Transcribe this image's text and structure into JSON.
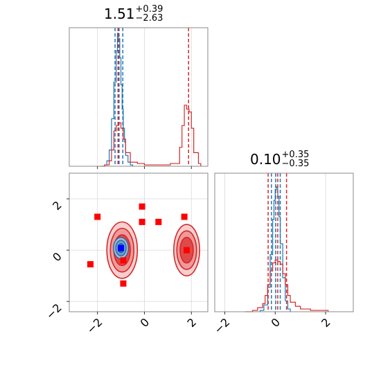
{
  "chart_data": {
    "type": "corner",
    "parameters": [
      {
        "title_value": "1.51",
        "title_plus": "+0.39",
        "title_minus": "−2.63",
        "range": [
          -3.2,
          2.7
        ],
        "ticks": [
          -2,
          0,
          2
        ],
        "tick_labels": [
          "−2",
          "0",
          "2"
        ]
      },
      {
        "title_value": "0.10",
        "title_plus": "+0.35",
        "title_minus": "−0.35",
        "range": [
          -2.4,
          3.1
        ],
        "ticks": [
          -2,
          0,
          2
        ],
        "tick_labels": [
          "−2",
          "0",
          "2"
        ]
      }
    ],
    "y_axis_2d": {
      "range": [
        -2.4,
        3.0
      ],
      "ticks": [
        -2,
        0,
        2
      ],
      "tick_labels": [
        "−2",
        "0",
        "2"
      ]
    },
    "series": [
      {
        "color": "#1f77b4",
        "quantiles_param1": [
          -0.92,
          -1.08,
          -1.25
        ],
        "quantiles_param2": [
          -0.15,
          0.02,
          0.2
        ],
        "hist1": {
          "x": [
            -1.7,
            -1.6,
            -1.5,
            -1.4,
            -1.3,
            -1.2,
            -1.15,
            -1.1,
            -1.05,
            -1.0,
            -0.95,
            -0.9,
            -0.85,
            -0.8,
            -0.7,
            -0.6
          ],
          "y": [
            0.01,
            0.04,
            0.12,
            0.35,
            0.62,
            0.85,
            0.98,
            0.94,
            0.8,
            0.6,
            0.42,
            0.28,
            0.18,
            0.08,
            0.03,
            0.01
          ]
        },
        "hist2": {
          "x": [
            -0.6,
            -0.45,
            -0.3,
            -0.2,
            -0.1,
            -0.05,
            0.0,
            0.05,
            0.1,
            0.15,
            0.2,
            0.3,
            0.4,
            0.5
          ],
          "y": [
            0.01,
            0.05,
            0.18,
            0.42,
            0.68,
            0.82,
            0.9,
            0.92,
            0.85,
            0.7,
            0.5,
            0.25,
            0.08,
            0.02
          ]
        },
        "contours_2d": [
          {
            "cx": -1.0,
            "cy": 0.08,
            "rx": 0.32,
            "ry": 0.42
          },
          {
            "cx": -1.0,
            "cy": 0.08,
            "rx": 0.22,
            "ry": 0.3
          },
          {
            "cx": -1.0,
            "cy": 0.08,
            "rx": 0.12,
            "ry": 0.18
          }
        ],
        "median_point": [
          -1.0,
          0.08
        ]
      },
      {
        "color": "#d62728",
        "quantiles_param1": [
          -1.12,
          -1.12,
          1.88
        ],
        "quantiles_param2": [
          -0.28,
          0.1,
          0.45
        ],
        "hist1": {
          "x": [
            -1.9,
            -1.7,
            -1.5,
            -1.4,
            -1.3,
            -1.2,
            -1.1,
            -1.0,
            -0.9,
            -0.8,
            -0.6,
            -0.3,
            0.0,
            0.6,
            1.1,
            1.5,
            1.6,
            1.7,
            1.8,
            1.9,
            2.0,
            2.1,
            2.3
          ],
          "y": [
            0.0,
            0.01,
            0.04,
            0.12,
            0.26,
            0.3,
            0.32,
            0.28,
            0.2,
            0.1,
            0.03,
            0.02,
            0.01,
            0.01,
            0.02,
            0.14,
            0.3,
            0.45,
            0.42,
            0.4,
            0.28,
            0.1,
            0.02
          ]
        },
        "hist2": {
          "x": [
            -1.2,
            -0.9,
            -0.7,
            -0.5,
            -0.4,
            -0.3,
            -0.2,
            -0.1,
            0.0,
            0.1,
            0.2,
            0.3,
            0.4,
            0.5,
            0.6,
            0.8,
            1.0,
            1.4,
            2.0
          ],
          "y": [
            0.0,
            0.01,
            0.03,
            0.06,
            0.12,
            0.2,
            0.3,
            0.36,
            0.38,
            0.37,
            0.35,
            0.28,
            0.2,
            0.12,
            0.07,
            0.04,
            0.02,
            0.01,
            0.01
          ]
        },
        "contours_2d": [
          {
            "cx": -0.95,
            "cy": 0.0,
            "rx": 0.65,
            "ry": 1.1
          },
          {
            "cx": -0.95,
            "cy": 0.0,
            "rx": 0.5,
            "ry": 0.85
          },
          {
            "cx": -0.95,
            "cy": 0.0,
            "rx": 0.35,
            "ry": 0.6
          },
          {
            "cx": 1.8,
            "cy": 0.0,
            "rx": 0.55,
            "ry": 1.0
          },
          {
            "cx": 1.8,
            "cy": 0.0,
            "rx": 0.42,
            "ry": 0.75
          },
          {
            "cx": 1.8,
            "cy": 0.0,
            "rx": 0.28,
            "ry": 0.5
          }
        ],
        "outlier_points": [
          [
            -2.0,
            1.3
          ],
          [
            -2.3,
            -0.55
          ],
          [
            -0.1,
            1.7
          ],
          [
            -0.1,
            1.1
          ],
          [
            0.6,
            1.1
          ],
          [
            1.7,
            1.3
          ],
          [
            -0.9,
            -1.3
          ],
          [
            -0.9,
            -0.4
          ],
          [
            1.8,
            0.0
          ]
        ],
        "median_point": [
          -1.0,
          0.0
        ]
      }
    ],
    "grid": true
  }
}
